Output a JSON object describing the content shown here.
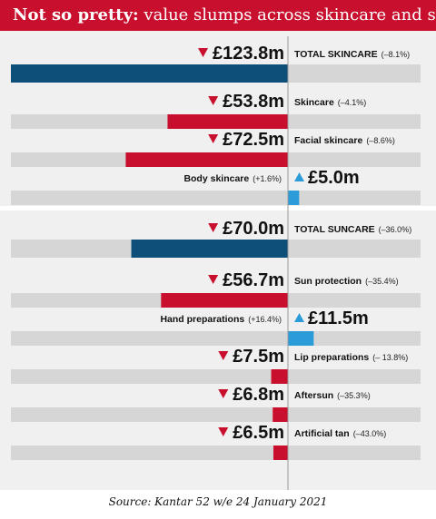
{
  "title": {
    "bold": "Not so pretty:",
    "rest": " value slumps across skincare and suncare"
  },
  "source": "Source: Kantar 52 w/e 24 January 2021",
  "colors": {
    "header_red": "#c8102e",
    "decline_red": "#c8102e",
    "growth_blue": "#2b9cd8",
    "total_navy": "#0e4f7a",
    "track_grey": "#d6d6d6",
    "panel_grey": "#f0f0f0"
  },
  "chart_data": {
    "type": "bar",
    "unit": "£m",
    "items": [
      {
        "category": "TOTAL SKINCARE",
        "value": 123.8,
        "value_label": "£123.8m",
        "change": "(–8.1%)",
        "direction": "down",
        "total": true
      },
      {
        "category": "Skincare",
        "value": 53.8,
        "value_label": "£53.8m",
        "change": "(–4.1%)",
        "direction": "down",
        "total": false
      },
      {
        "category": "Facial skincare",
        "value": 72.5,
        "value_label": "£72.5m",
        "change": "(–8.6%)",
        "direction": "down",
        "total": false
      },
      {
        "category": "Body skincare",
        "value": 5.0,
        "value_label": "£5.0m",
        "change": "(+1.6%)",
        "direction": "up",
        "total": false
      },
      {
        "category": "TOTAL SUNCARE",
        "value": 70.0,
        "value_label": "£70.0m",
        "change": "(–36.0%)",
        "direction": "down",
        "total": true
      },
      {
        "category": "Sun protection",
        "value": 56.7,
        "value_label": "£56.7m",
        "change": "(–35.4%)",
        "direction": "down",
        "total": false
      },
      {
        "category": "Hand preparations",
        "value": 11.5,
        "value_label": "£11.5m",
        "change": "(+16.4%)",
        "direction": "up",
        "total": false
      },
      {
        "category": "Lip preparations",
        "value": 7.5,
        "value_label": "£7.5m",
        "change": "(– 13.8%)",
        "direction": "down",
        "total": false
      },
      {
        "category": "Aftersun",
        "value": 6.8,
        "value_label": "£6.8m",
        "change": "(–35.3%)",
        "direction": "down",
        "total": false
      },
      {
        "category": "Artificial tan",
        "value": 6.5,
        "value_label": "£6.5m",
        "change": "(–43.0%)",
        "direction": "down",
        "total": false
      }
    ]
  }
}
